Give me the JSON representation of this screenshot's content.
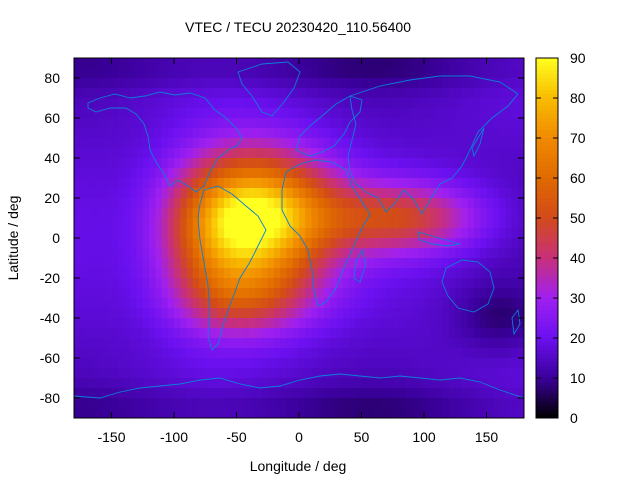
{
  "chart_data": {
    "type": "heatmap",
    "title": "VTEC / TECU 20230420_110.56400",
    "xlabel": "Longitude / deg",
    "ylabel": "Latitude / deg",
    "xlim": [
      -180,
      180
    ],
    "ylim": [
      -90,
      90
    ],
    "x_ticks": [
      -150,
      -100,
      -50,
      0,
      50,
      100,
      150
    ],
    "y_ticks": [
      -80,
      -60,
      -40,
      -20,
      0,
      20,
      40,
      60,
      80
    ],
    "colorbar": {
      "range": [
        0,
        90
      ],
      "ticks": [
        0,
        10,
        20,
        30,
        40,
        50,
        60,
        70,
        80,
        90
      ],
      "palette": [
        "#000000",
        "#3a009a",
        "#6b10f0",
        "#a020f0",
        "#c8307a",
        "#d24a1a",
        "#e06a00",
        "#f08a00",
        "#f8bc00",
        "#ffff20"
      ]
    },
    "background_vtec": 16,
    "features": [
      {
        "name": "equatorial-anomaly-core",
        "center_lon": -30,
        "center_lat": 10,
        "peak_vtec": 87
      },
      {
        "name": "american-sector-enhancement",
        "center_lon": -70,
        "center_lat": 0,
        "peak_vtec": 60
      },
      {
        "name": "southern-crest",
        "center_lon": -40,
        "center_lat": -30,
        "peak_vtec": 50
      },
      {
        "name": "indian-ocean-tail",
        "center_lon": 80,
        "center_lat": 10,
        "peak_vtec": 50
      },
      {
        "name": "pacific-low",
        "center_lon": 160,
        "center_lat": -40,
        "peak_vtec": 8
      }
    ],
    "coastlines": "world continents overlay"
  },
  "colors": {
    "coastline": "#0a7fd8",
    "axis": "#000000"
  }
}
